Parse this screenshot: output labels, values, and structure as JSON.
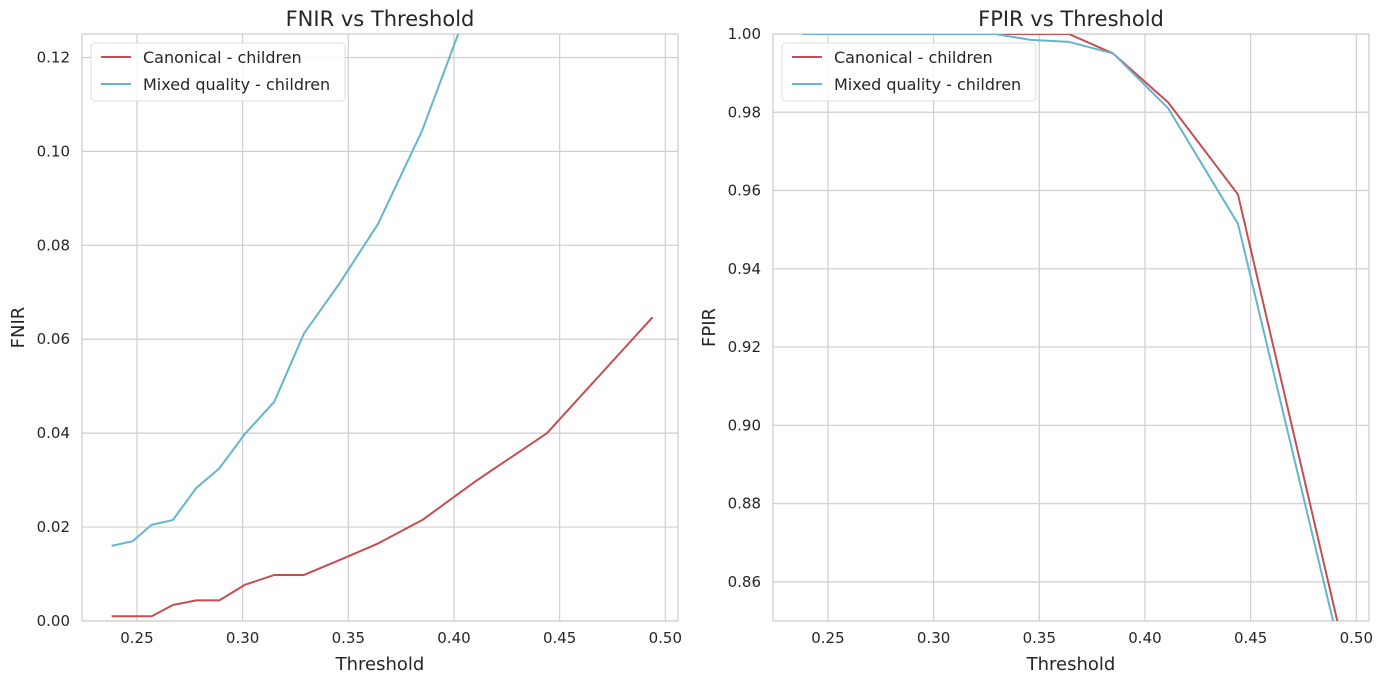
{
  "chart_data": [
    {
      "type": "line",
      "title": "FNIR vs Threshold",
      "xlabel": "Threshold",
      "ylabel": "FNIR",
      "xlim": [
        0.224,
        0.506
      ],
      "ylim": [
        0,
        0.125
      ],
      "xticks": [
        0.25,
        0.3,
        0.35,
        0.4,
        0.45,
        0.5
      ],
      "xtick_labels": [
        "0.25",
        "0.30",
        "0.35",
        "0.40",
        "0.45",
        "0.50"
      ],
      "yticks": [
        0,
        0.02,
        0.04,
        0.06,
        0.08,
        0.1,
        0.12
      ],
      "ytick_labels": [
        "0.00",
        "0.02",
        "0.04",
        "0.06",
        "0.08",
        "0.10",
        "0.12"
      ],
      "grid": true,
      "legend_position": "upper-left",
      "series": [
        {
          "name": "Canonical - children",
          "color": "#c44e52",
          "x": [
            0.238,
            0.248,
            0.257,
            0.267,
            0.278,
            0.289,
            0.301,
            0.315,
            0.329,
            0.346,
            0.364,
            0.385,
            0.411,
            0.444,
            0.494
          ],
          "y": [
            0.001,
            0.001,
            0.001,
            0.0034,
            0.0044,
            0.0044,
            0.0077,
            0.0098,
            0.0098,
            0.013,
            0.0165,
            0.0215,
            0.03,
            0.04,
            0.0647
          ]
        },
        {
          "name": "Mixed quality - children",
          "color": "#64b5cd",
          "x": [
            0.238,
            0.248,
            0.257,
            0.267,
            0.278,
            0.289,
            0.301,
            0.315,
            0.329,
            0.346,
            0.364,
            0.385,
            0.402
          ],
          "y": [
            0.016,
            0.017,
            0.0205,
            0.0215,
            0.0283,
            0.0325,
            0.0398,
            0.0467,
            0.0612,
            0.072,
            0.0845,
            0.1045,
            0.125
          ]
        }
      ]
    },
    {
      "type": "line",
      "title": "FPIR vs Threshold",
      "xlabel": "Threshold",
      "ylabel": "FPIR",
      "xlim": [
        0.224,
        0.506
      ],
      "ylim": [
        0.85,
        1.0
      ],
      "xticks": [
        0.25,
        0.3,
        0.35,
        0.4,
        0.45,
        0.5
      ],
      "xtick_labels": [
        "0.25",
        "0.30",
        "0.35",
        "0.40",
        "0.45",
        "0.50"
      ],
      "yticks": [
        0.86,
        0.88,
        0.9,
        0.92,
        0.94,
        0.96,
        0.98,
        1.0
      ],
      "ytick_labels": [
        "0.86",
        "0.88",
        "0.90",
        "0.92",
        "0.94",
        "0.96",
        "0.98",
        "1.00"
      ],
      "grid": true,
      "legend_position": "upper-left",
      "series": [
        {
          "name": "Canonical - children",
          "color": "#c44e52",
          "x": [
            0.238,
            0.257,
            0.278,
            0.301,
            0.329,
            0.346,
            0.364,
            0.385,
            0.411,
            0.444,
            0.491
          ],
          "y": [
            1.0,
            1.0,
            1.0,
            1.0,
            1.0,
            1.0,
            1.0,
            0.995,
            0.9825,
            0.959,
            0.85
          ]
        },
        {
          "name": "Mixed quality - children",
          "color": "#64b5cd",
          "x": [
            0.238,
            0.257,
            0.278,
            0.301,
            0.329,
            0.346,
            0.364,
            0.385,
            0.411,
            0.444,
            0.489
          ],
          "y": [
            1.0,
            1.0,
            1.0,
            1.0,
            1.0,
            0.9985,
            0.998,
            0.995,
            0.981,
            0.9515,
            0.85
          ]
        }
      ]
    }
  ]
}
